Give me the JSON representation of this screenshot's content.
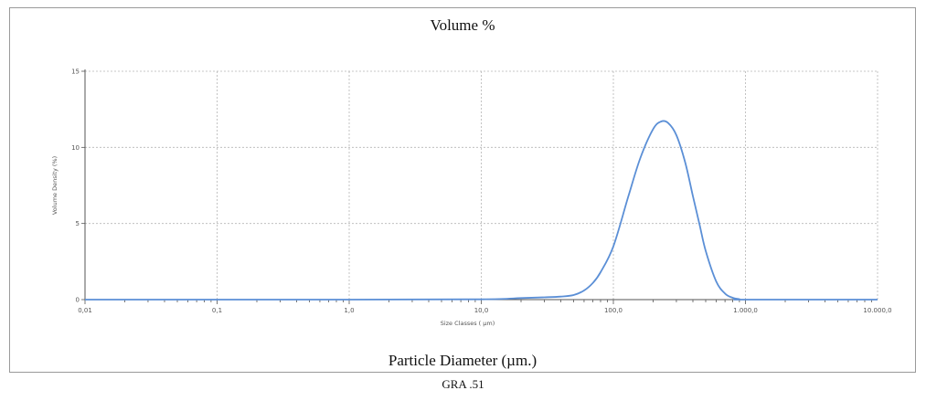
{
  "title": "Volume %",
  "outer_xlabel": "Particle Diameter (µm.)",
  "caption": "GRA .51",
  "chart_data": {
    "type": "line",
    "xscale": "log",
    "xlim": [
      0.01,
      10000
    ],
    "ylim": [
      0,
      15
    ],
    "grid": true,
    "ylabel": "Volume Density (%)",
    "xlabel": "Size Classes ( µm)",
    "x_ticks": [
      {
        "v": 0.01,
        "label": "0,01"
      },
      {
        "v": 0.1,
        "label": "0,1"
      },
      {
        "v": 1,
        "label": "1,0"
      },
      {
        "v": 10,
        "label": "10,0"
      },
      {
        "v": 100,
        "label": "100,0"
      },
      {
        "v": 1000,
        "label": "1.000,0"
      },
      {
        "v": 10000,
        "label": "10.000,0"
      }
    ],
    "y_ticks": [
      {
        "v": 0,
        "label": "0"
      },
      {
        "v": 5,
        "label": "5"
      },
      {
        "v": 10,
        "label": "10"
      },
      {
        "v": 15,
        "label": "15"
      }
    ],
    "line_color": "#5b8fd6",
    "series": [
      {
        "x": [
          0.01,
          1,
          10,
          20,
          30,
          40,
          50,
          60,
          70,
          80,
          100,
          130,
          160,
          200,
          230,
          260,
          300,
          350,
          400,
          450,
          500,
          600,
          700,
          800,
          900,
          1000,
          10000
        ],
        "y": [
          0,
          0,
          0.02,
          0.1,
          0.15,
          0.2,
          0.3,
          0.6,
          1.1,
          1.8,
          3.5,
          6.8,
          9.3,
          11.2,
          11.7,
          11.6,
          10.8,
          9.0,
          6.8,
          4.9,
          3.2,
          1.2,
          0.4,
          0.12,
          0.03,
          0,
          0
        ]
      }
    ]
  }
}
